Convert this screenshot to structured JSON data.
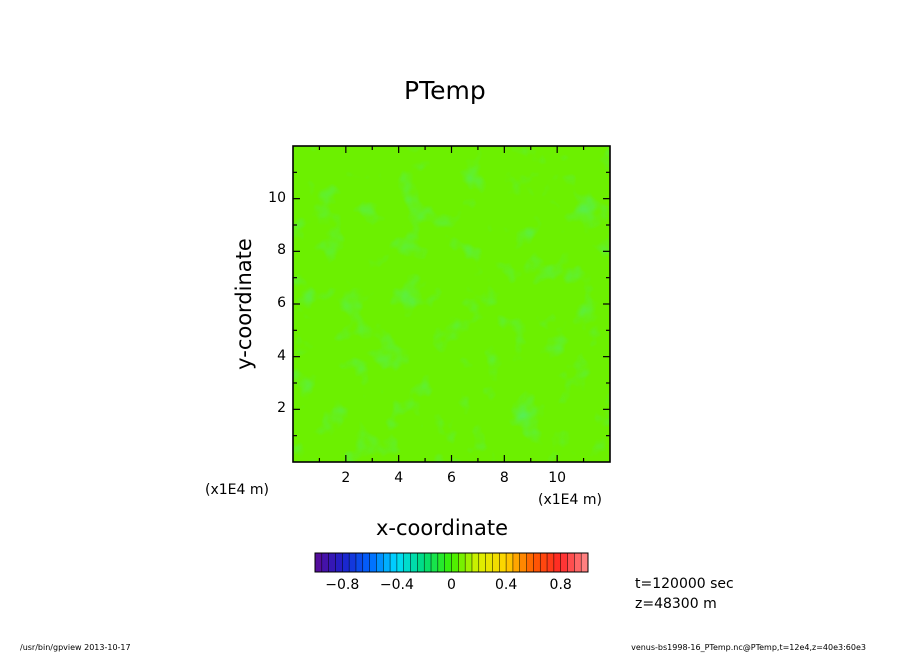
{
  "chart_data": {
    "type": "heatmap",
    "title": "PTemp",
    "xlabel": "x-coordinate",
    "ylabel": "y-coordinate",
    "x_unit": "(x1E4 m)",
    "y_unit": "(x1E4 m)",
    "xlim": [
      0,
      12
    ],
    "ylim": [
      0,
      12
    ],
    "x_ticks": [
      "2",
      "4",
      "6",
      "8",
      "10"
    ],
    "y_ticks": [
      "2",
      "4",
      "6",
      "8",
      "10"
    ],
    "x_tick_values": [
      2,
      4,
      6,
      8,
      10
    ],
    "y_tick_values": [
      2,
      4,
      6,
      8,
      10
    ],
    "field_range": [
      -0.1,
      0.1
    ],
    "dominant_value": 0,
    "colorbar": {
      "range": [
        -1,
        1
      ],
      "levels": 40,
      "tick_labels": [
        "-0.8",
        "-0.4",
        "0",
        "0.4",
        "0.8"
      ],
      "tick_values": [
        -0.8,
        -0.4,
        0,
        0.4,
        0.8
      ],
      "colors": [
        "#5a0a96",
        "#1e1ec8",
        "#0064ff",
        "#00dcff",
        "#00dc78",
        "#3cf000",
        "#dcf000",
        "#ffd200",
        "#ff5a00",
        "#ff2828",
        "#ff8c8c"
      ]
    },
    "grid": false
  },
  "info": {
    "time": "t=120000 sec",
    "height": "z=48300 m"
  },
  "footer": {
    "left": "/usr/bin/gpview   2013-10-17",
    "right": "venus-bs1998-16_PTemp.nc@PTemp,t=12e4,z=40e3:60e3"
  }
}
